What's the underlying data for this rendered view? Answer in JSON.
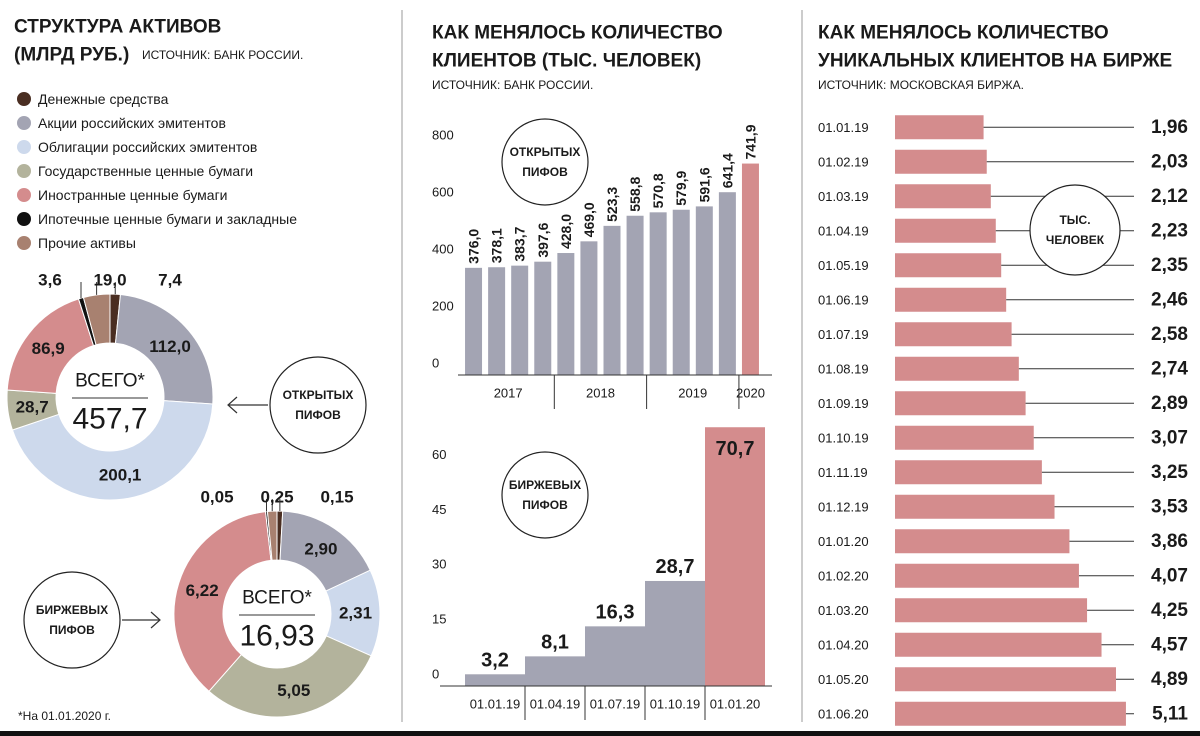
{
  "chart_data": [
    {
      "type": "donut",
      "title": [
        "СТРУКТУРА АКТИВОВ",
        "(МЛРД РУБ.)"
      ],
      "source": "ИСТОЧНИК: БАНК РОССИИ.",
      "categories": [
        "Денежные средства",
        "Акции российских эмитентов",
        "Облигации российских эмитентов",
        "Государственные ценные бумаги",
        "Иностранные ценные бумаги",
        "Ипотечные ценные бумаги и закладные",
        "Прочие активы"
      ],
      "colors": [
        "#4a2e22",
        "#a3a4b3",
        "#cdd9ec",
        "#b3b39c",
        "#d48c8d",
        "#111111",
        "#a88170"
      ],
      "values": [
        7.4,
        112.0,
        200.1,
        28.7,
        86.9,
        3.6,
        19.0
      ],
      "value_labels": [
        "7,4",
        "112,0",
        "200,1",
        "28,7",
        "86,9",
        "3,6",
        "19,0"
      ],
      "total_caption": "ВСЕГО*",
      "total": 457.7,
      "total_label": "457,7",
      "label": [
        "ОТКРЫТЫХ",
        "ПИФОВ"
      ]
    },
    {
      "type": "donut",
      "colors": [
        "#4a2e22",
        "#a3a4b3",
        "#cdd9ec",
        "#b3b39c",
        "#d48c8d",
        "#111111",
        "#a88170"
      ],
      "values": [
        0.15,
        2.9,
        2.31,
        5.05,
        6.22,
        0.05,
        0.25
      ],
      "value_labels": [
        "0,15",
        "2,90",
        "2,31",
        "5,05",
        "6,22",
        "0,05",
        "0,25"
      ],
      "total_caption": "ВСЕГО*",
      "total": 16.93,
      "total_label": "16,93",
      "label": [
        "БИРЖЕВЫХ",
        "ПИФОВ"
      ],
      "footnote": "*На 01.01.2020 г."
    },
    {
      "type": "bar",
      "title": [
        "КАК МЕНЯЛОСЬ КОЛИЧЕСТВО",
        "КЛИЕНТОВ (ТЫС. ЧЕЛОВЕК)"
      ],
      "source": "ИСТОЧНИК: БАНК РОССИИ.",
      "categories": [
        "2017",
        null,
        null,
        null,
        "2018",
        null,
        null,
        null,
        "2019",
        null,
        null,
        null,
        "2020"
      ],
      "values": [
        376.0,
        378.1,
        383.7,
        397.6,
        428.0,
        469.0,
        523.3,
        558.8,
        570.8,
        579.9,
        591.6,
        641.4,
        741.9
      ],
      "value_labels": [
        "376,0",
        "378,1",
        "383,7",
        "397,6",
        "428,0",
        "469,0",
        "523,3",
        "558,8",
        "570,8",
        "579,9",
        "591,6",
        "641,4",
        "741,9"
      ],
      "colors": [
        "#a3a4b3",
        "#a3a4b3",
        "#a3a4b3",
        "#a3a4b3",
        "#a3a4b3",
        "#a3a4b3",
        "#a3a4b3",
        "#a3a4b3",
        "#a3a4b3",
        "#a3a4b3",
        "#a3a4b3",
        "#a3a4b3",
        "#d48c8d"
      ],
      "ylim": [
        0,
        800
      ],
      "yticks": [
        0,
        200,
        400,
        600,
        800
      ],
      "label": [
        "ОТКРЫТЫХ",
        "ПИФОВ"
      ]
    },
    {
      "type": "bar",
      "categories": [
        "01.01.19",
        "01.04.19",
        "01.07.19",
        "01.10.19",
        "01.01.20"
      ],
      "values": [
        3.2,
        8.1,
        16.3,
        28.7,
        70.7
      ],
      "value_labels": [
        "3,2",
        "8,1",
        "16,3",
        "28,7",
        "70,7"
      ],
      "colors": [
        "#a3a4b3",
        "#a3a4b3",
        "#a3a4b3",
        "#a3a4b3",
        "#d48c8d"
      ],
      "ylim": [
        0,
        75
      ],
      "yticks": [
        0,
        15,
        30,
        45,
        60
      ],
      "label": [
        "БИРЖЕВЫХ",
        "ПИФОВ"
      ]
    },
    {
      "type": "barh",
      "title": [
        "КАК МЕНЯЛОСЬ КОЛИЧЕСТВО",
        "УНИКАЛЬНЫХ КЛИЕНТОВ НА БИРЖЕ"
      ],
      "source": "ИСТОЧНИК: МОСКОВСКАЯ БИРЖА.",
      "categories": [
        "01.01.19",
        "01.02.19",
        "01.03.19",
        "01.04.19",
        "01.05.19",
        "01.06.19",
        "01.07.19",
        "01.08.19",
        "01.09.19",
        "01.10.19",
        "01.11.19",
        "01.12.19",
        "01.01.20",
        "01.02.20",
        "01.03.20",
        "01.04.20",
        "01.05.20",
        "01.06.20"
      ],
      "values": [
        1.96,
        2.03,
        2.12,
        2.23,
        2.35,
        2.46,
        2.58,
        2.74,
        2.89,
        3.07,
        3.25,
        3.53,
        3.86,
        4.07,
        4.25,
        4.57,
        4.89,
        5.11
      ],
      "value_labels": [
        "1,96",
        "2,03",
        "2,12",
        "2,23",
        "2,35",
        "2,46",
        "2,58",
        "2,74",
        "2,89",
        "3,07",
        "3,25",
        "3,53",
        "3,86",
        "4,07",
        "4,25",
        "4,57",
        "4,89",
        "5,11"
      ],
      "color": "#d48c8d",
      "xlim": [
        0,
        5.2
      ],
      "label": [
        "ТЫС.",
        "ЧЕЛОВЕК"
      ]
    }
  ]
}
